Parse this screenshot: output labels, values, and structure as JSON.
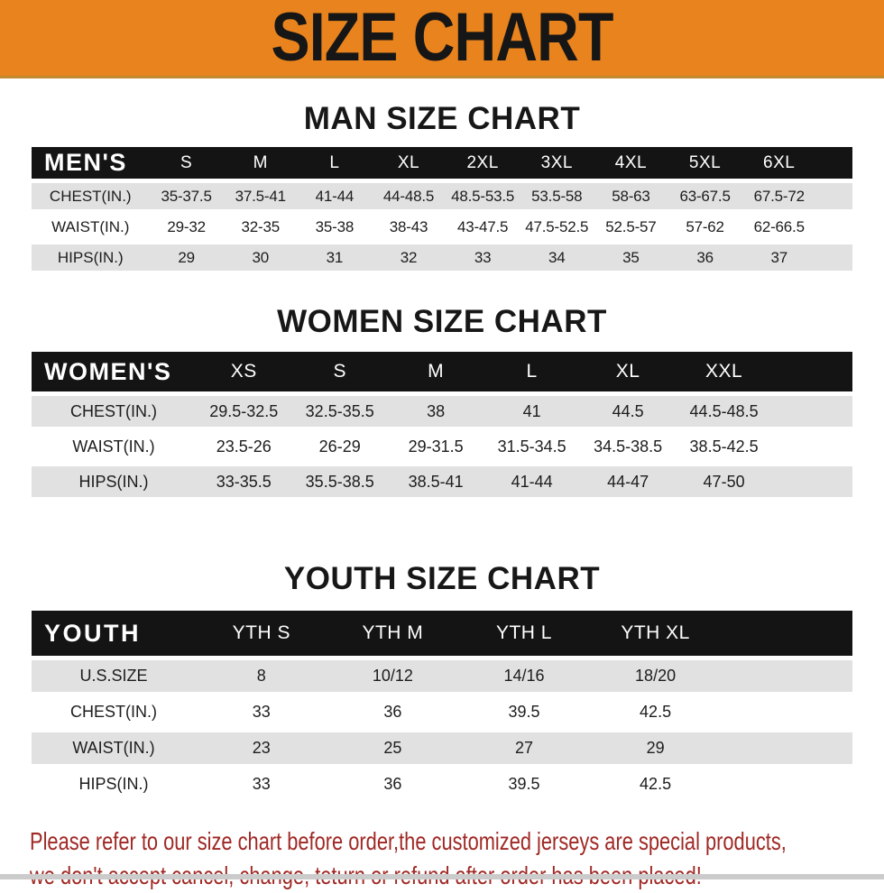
{
  "banner": {
    "title": "SIZE CHART"
  },
  "colors": {
    "banner_bg": "#E8831D",
    "banner_border": "#C08A2E",
    "header_bar": "#141414",
    "row_stripe": "#E1E1E1",
    "heading_text": "#171717",
    "footer_text": "#9F2824",
    "bottom_strip": "#CBCBCB"
  },
  "sections": [
    {
      "id": "men",
      "heading": "MAN SIZE CHART",
      "table": {
        "corner_label": "MEN'S",
        "columns": [
          "S",
          "M",
          "L",
          "XL",
          "2XL",
          "3XL",
          "4XL",
          "5XL",
          "6XL"
        ],
        "rows": [
          {
            "label": "CHEST(IN.)",
            "values": [
              "35-37.5",
              "37.5-41",
              "41-44",
              "44-48.5",
              "48.5-53.5",
              "53.5-58",
              "58-63",
              "63-67.5",
              "67.5-72"
            ]
          },
          {
            "label": "WAIST(IN.)",
            "values": [
              "29-32",
              "32-35",
              "35-38",
              "38-43",
              "43-47.5",
              "47.5-52.5",
              "52.5-57",
              "57-62",
              "62-66.5"
            ]
          },
          {
            "label": "HIPS(IN.)",
            "values": [
              "29",
              "30",
              "31",
              "32",
              "33",
              "34",
              "35",
              "36",
              "37"
            ]
          }
        ]
      }
    },
    {
      "id": "women",
      "heading": "WOMEN SIZE CHART",
      "table": {
        "corner_label": "WOMEN'S",
        "columns": [
          "XS",
          "S",
          "M",
          "L",
          "XL",
          "XXL"
        ],
        "rows": [
          {
            "label": "CHEST(IN.)",
            "values": [
              "29.5-32.5",
              "32.5-35.5",
              "38",
              "41",
              "44.5",
              "44.5-48.5"
            ]
          },
          {
            "label": "WAIST(IN.)",
            "values": [
              "23.5-26",
              "26-29",
              "29-31.5",
              "31.5-34.5",
              "34.5-38.5",
              "38.5-42.5"
            ]
          },
          {
            "label": "HIPS(IN.)",
            "values": [
              "33-35.5",
              "35.5-38.5",
              "38.5-41",
              "41-44",
              "44-47",
              "47-50"
            ]
          }
        ]
      }
    },
    {
      "id": "youth",
      "heading": "YOUTH SIZE CHART",
      "table": {
        "corner_label": "YOUTH",
        "columns": [
          "YTH S",
          "YTH M",
          "YTH L",
          "YTH XL"
        ],
        "rows": [
          {
            "label": "U.S.SIZE",
            "values": [
              "8",
              "10/12",
              "14/16",
              "18/20"
            ]
          },
          {
            "label": "CHEST(IN.)",
            "values": [
              "33",
              "36",
              "39.5",
              "42.5"
            ]
          },
          {
            "label": "WAIST(IN.)",
            "values": [
              "23",
              "25",
              "27",
              "29"
            ]
          },
          {
            "label": "HIPS(IN.)",
            "values": [
              "33",
              "36",
              "39.5",
              "42.5"
            ]
          }
        ]
      }
    }
  ],
  "footer": {
    "lines": [
      "Please refer to our size chart before order,the customized jerseys are special products,",
      "we don't accept cancel, change, teturn or refund after order has been placed!"
    ]
  }
}
